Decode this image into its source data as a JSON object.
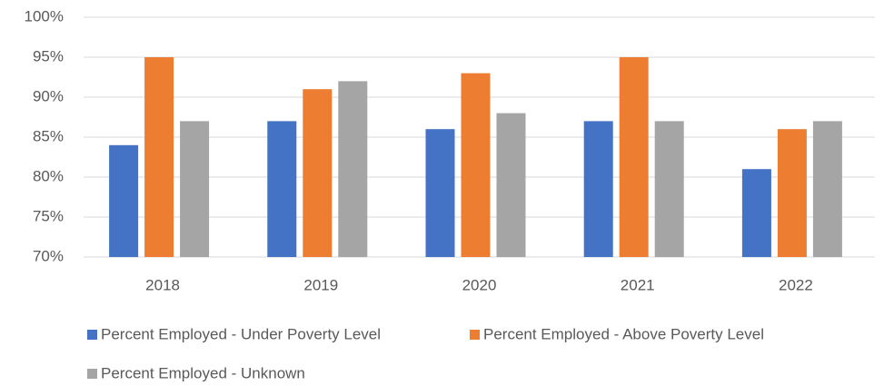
{
  "chart_data": {
    "type": "bar",
    "categories": [
      "2018",
      "2019",
      "2020",
      "2021",
      "2022"
    ],
    "series": [
      {
        "name": "Percent Employed - Under Poverty Level",
        "color": "#4472c4",
        "values": [
          84,
          87,
          86,
          87,
          81
        ]
      },
      {
        "name": "Percent Employed - Above Poverty Level",
        "color": "#ed7d31",
        "values": [
          95,
          91,
          93,
          95,
          86
        ]
      },
      {
        "name": "Percent Employed - Unknown",
        "color": "#a5a5a5",
        "values": [
          87,
          92,
          88,
          87,
          87
        ]
      }
    ],
    "ylim": [
      70,
      100
    ],
    "yticks": [
      {
        "value": 70,
        "label": "70%"
      },
      {
        "value": 75,
        "label": "75%"
      },
      {
        "value": 80,
        "label": "80%"
      },
      {
        "value": 85,
        "label": "85%"
      },
      {
        "value": 90,
        "label": "90%"
      },
      {
        "value": 95,
        "label": "95%"
      },
      {
        "value": 100,
        "label": "100%"
      }
    ],
    "grid": true,
    "legend": "bottom"
  }
}
